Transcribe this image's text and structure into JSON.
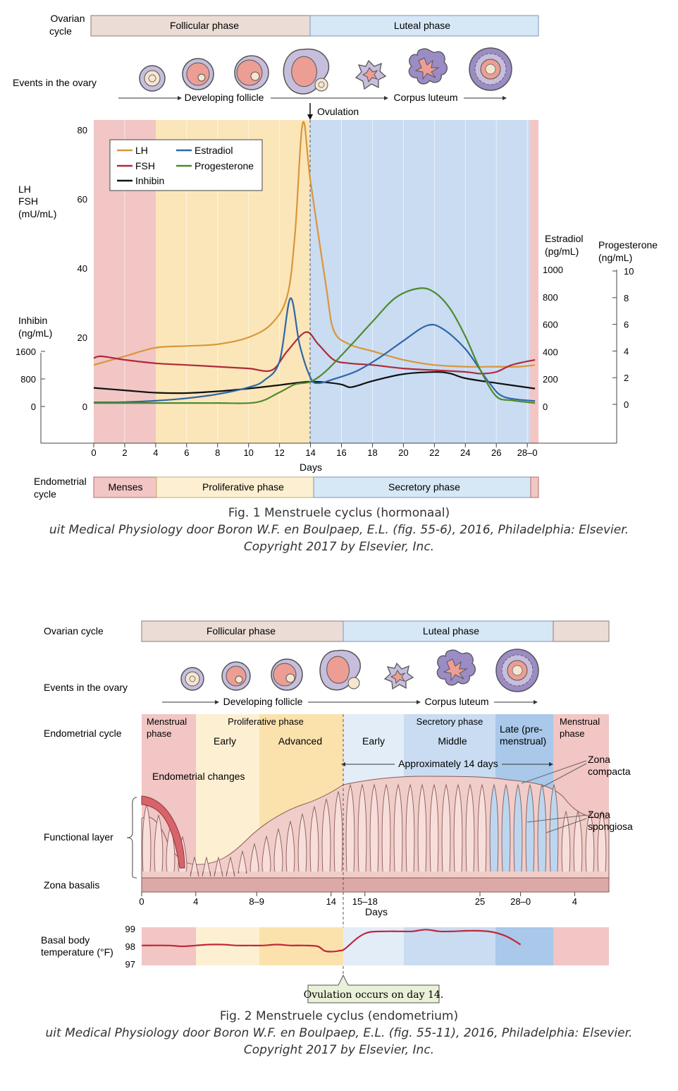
{
  "fig1": {
    "ovarian_label_1": "Ovarian",
    "ovarian_label_2": "cycle",
    "follicular": "Follicular phase",
    "luteal": "Luteal phase",
    "events_label": "Events in the ovary",
    "developing": "Developing follicle",
    "corpus": "Corpus luteum",
    "ovulation": "Ovulation",
    "endo_label_1": "Endometrial",
    "endo_label_2": "cycle",
    "menses": "Menses",
    "proliferative": "Proliferative phase",
    "secretory": "Secretory phase",
    "caption_title": "Fig. 1 Menstruele cyclus (hormonaal)",
    "caption_source": "uit Medical Physiology door Boron W.F. en Boulpaep, E.L. (fig. 55-6), 2016, Philadelphia: Elsevier.",
    "caption_copyright": "Copyright 2017 by Elsevier, Inc."
  },
  "fig2": {
    "ovarian_label": "Ovarian cycle",
    "follicular": "Follicular phase",
    "luteal": "Luteal phase",
    "events_label": "Events in the ovary",
    "developing": "Developing follicle",
    "corpus": "Corpus luteum",
    "endo_label": "Endometrial cycle",
    "menstrual_1": "Menstrual",
    "menstrual_2": "phase",
    "proliferative": "Proliferative phase",
    "early": "Early",
    "advanced": "Advanced",
    "secretory": "Secretory phase",
    "sec_early": "Early",
    "sec_middle": "Middle",
    "late_1": "Late (pre-",
    "late_2": "menstrual)",
    "menstrual_end_1": "Menstrual",
    "menstrual_end_2": "phase",
    "endo_changes": "Endometrial changes",
    "approx": "Approximately 14 days",
    "zona_compacta_1": "Zona",
    "zona_compacta_2": "compacta",
    "zona_spongiosa_1": "Zona",
    "zona_spongiosa_2": "spongiosa",
    "functional": "Functional layer",
    "basalis": "Zona basalis",
    "days_label": "Days",
    "day_ticks": [
      "0",
      "4",
      "8–9",
      "14",
      "15–18",
      "25",
      "28–0",
      "4"
    ],
    "bbt_label_1": "Basal body",
    "bbt_label_2": "temperature (°F)",
    "ovulation_note": "Ovulation occurs on day 14.",
    "caption_title": "Fig. 2 Menstruele cyclus (endometrium)",
    "caption_source": "uit Medical Physiology door Boron W.F. en Boulpaep, E.L. (fig. 55-11), 2016, Philadelphia: Elsevier.",
    "caption_copyright": "Copyright 2017 by Elsevier, Inc."
  },
  "colors": {
    "lh": "#d9963a",
    "fsh": "#b02a3a",
    "inhibin": "#111111",
    "estradiol": "#2f66a8",
    "progesterone": "#4f8a2c",
    "menses_bg": "#f1c6c4",
    "follicular_bg": "#fbe6b9",
    "luteal_bg": "#c9dcf2",
    "bbt": "#c0283a"
  },
  "chart_data": [
    {
      "type": "line",
      "x_unit": "Days",
      "xlabel": "Days",
      "x_ticks": [
        "0",
        "2",
        "4",
        "6",
        "8",
        "10",
        "12",
        "14",
        "16",
        "18",
        "20",
        "22",
        "24",
        "26",
        "28–0"
      ],
      "axes": {
        "lh_fsh": {
          "label": [
            "LH",
            "FSH",
            "(mU/mL)"
          ],
          "ticks": [
            "0",
            "20",
            "40",
            "60",
            "80"
          ],
          "range": [
            0,
            80
          ]
        },
        "inhibin": {
          "label": [
            "Inhibin",
            "(ng/mL)"
          ],
          "ticks": [
            "0",
            "800",
            "1600"
          ],
          "range": [
            0,
            1600
          ]
        },
        "estradiol": {
          "label": [
            "Estradiol",
            "(pg/mL)"
          ],
          "ticks": [
            "0",
            "200",
            "400",
            "600",
            "800",
            "1000"
          ],
          "range": [
            0,
            1000
          ]
        },
        "progesterone": {
          "label": [
            "Progesterone",
            "(ng/mL)"
          ],
          "ticks": [
            "0",
            "2",
            "4",
            "6",
            "8",
            "10"
          ],
          "range": [
            0,
            10
          ]
        }
      },
      "legend_position": "top-left",
      "series": [
        {
          "name": "LH",
          "axis": "lh_fsh",
          "color_key": "lh",
          "points": [
            [
              0,
              12
            ],
            [
              2,
              14.5
            ],
            [
              4,
              17
            ],
            [
              6,
              17.5
            ],
            [
              8,
              18
            ],
            [
              10,
              20
            ],
            [
              11.5,
              24
            ],
            [
              12.5,
              32
            ],
            [
              13,
              50
            ],
            [
              13.5,
              82
            ],
            [
              14,
              65
            ],
            [
              15,
              35
            ],
            [
              15.5,
              22
            ],
            [
              16.5,
              18
            ],
            [
              18,
              16
            ],
            [
              20,
              13.5
            ],
            [
              22,
              12
            ],
            [
              24,
              11.5
            ],
            [
              26,
              11.5
            ],
            [
              27.5,
              11.5
            ],
            [
              28.5,
              12
            ]
          ]
        },
        {
          "name": "FSH",
          "axis": "lh_fsh",
          "color_key": "fsh",
          "points": [
            [
              0,
              14
            ],
            [
              0.5,
              14.5
            ],
            [
              2,
              13.5
            ],
            [
              4,
              12.5
            ],
            [
              6,
              12
            ],
            [
              8,
              11.5
            ],
            [
              10,
              11
            ],
            [
              11.5,
              10.5
            ],
            [
              12.5,
              16
            ],
            [
              13.7,
              21.5
            ],
            [
              14.5,
              18
            ],
            [
              15.5,
              13.5
            ],
            [
              16.5,
              12.5
            ],
            [
              18,
              12
            ],
            [
              20,
              11
            ],
            [
              22,
              10.5
            ],
            [
              24,
              10
            ],
            [
              25,
              9.5
            ],
            [
              26,
              10
            ],
            [
              27,
              12
            ],
            [
              28.5,
              13.5
            ]
          ]
        },
        {
          "name": "Inhibin",
          "axis": "inhibin",
          "color_key": "inhibin",
          "points": [
            [
              0,
              540
            ],
            [
              2,
              470
            ],
            [
              4,
              400
            ],
            [
              6,
              390
            ],
            [
              8,
              440
            ],
            [
              10,
              520
            ],
            [
              12,
              620
            ],
            [
              13,
              680
            ],
            [
              14,
              720
            ],
            [
              15,
              700
            ],
            [
              16,
              640
            ],
            [
              16.5,
              560
            ],
            [
              17,
              600
            ],
            [
              18,
              740
            ],
            [
              20,
              940
            ],
            [
              22,
              1000
            ],
            [
              23,
              960
            ],
            [
              24,
              820
            ],
            [
              26,
              680
            ],
            [
              28.5,
              520
            ]
          ]
        },
        {
          "name": "Estradiol",
          "axis": "estradiol",
          "color_key": "estradiol",
          "points": [
            [
              0,
              30
            ],
            [
              2,
              32
            ],
            [
              4,
              42
            ],
            [
              6,
              60
            ],
            [
              8,
              90
            ],
            [
              10,
              140
            ],
            [
              11,
              190
            ],
            [
              12,
              330
            ],
            [
              12.7,
              790
            ],
            [
              13.3,
              450
            ],
            [
              14,
              210
            ],
            [
              14.5,
              170
            ],
            [
              15.5,
              200
            ],
            [
              17,
              260
            ],
            [
              18.5,
              360
            ],
            [
              20,
              480
            ],
            [
              21.5,
              590
            ],
            [
              22.5,
              570
            ],
            [
              24,
              420
            ],
            [
              25.5,
              180
            ],
            [
              26.5,
              70
            ],
            [
              28.5,
              40
            ]
          ]
        },
        {
          "name": "Progesterone",
          "axis": "progesterone",
          "color_key": "progesterone",
          "points": [
            [
              0,
              0.1
            ],
            [
              2,
              0.1
            ],
            [
              4,
              0.1
            ],
            [
              6,
              0.1
            ],
            [
              8,
              0.1
            ],
            [
              10.5,
              0.15
            ],
            [
              12,
              0.9
            ],
            [
              13,
              1.5
            ],
            [
              14,
              1.7
            ],
            [
              15,
              2.5
            ],
            [
              16.5,
              4.3
            ],
            [
              18,
              6.2
            ],
            [
              19.5,
              8.0
            ],
            [
              21,
              8.7
            ],
            [
              22,
              8.4
            ],
            [
              23,
              7.2
            ],
            [
              24,
              5.1
            ],
            [
              25,
              2.5
            ],
            [
              26,
              0.6
            ],
            [
              27,
              0.3
            ],
            [
              28.5,
              0.1
            ]
          ]
        }
      ]
    },
    {
      "type": "line",
      "title": "Basal body temperature (°F)",
      "xlabel": "Days",
      "y_ticks": [
        "97",
        "98",
        "99"
      ],
      "ylim": [
        97,
        99
      ],
      "series": [
        {
          "name": "Basal body temperature",
          "color_key": "bbt",
          "points": [
            [
              0,
              98.05
            ],
            [
              2,
              98.05
            ],
            [
              3,
              98.0
            ],
            [
              4,
              98.05
            ],
            [
              5,
              98.1
            ],
            [
              6,
              98.1
            ],
            [
              7,
              98.05
            ],
            [
              8,
              98.05
            ],
            [
              9,
              98.05
            ],
            [
              10,
              98.1
            ],
            [
              11,
              98.05
            ],
            [
              12,
              98.05
            ],
            [
              13,
              98.0
            ],
            [
              13.5,
              97.75
            ],
            [
              14,
              97.7
            ],
            [
              14.6,
              97.75
            ],
            [
              15,
              97.85
            ],
            [
              16,
              98.5
            ],
            [
              16.8,
              98.8
            ],
            [
              18,
              98.85
            ],
            [
              19,
              98.85
            ],
            [
              20,
              98.85
            ],
            [
              21,
              98.95
            ],
            [
              22,
              98.85
            ],
            [
              23,
              98.85
            ],
            [
              24,
              98.88
            ],
            [
              25,
              98.88
            ],
            [
              26,
              98.8
            ],
            [
              27,
              98.55
            ],
            [
              28,
              98.1
            ]
          ]
        }
      ]
    }
  ]
}
